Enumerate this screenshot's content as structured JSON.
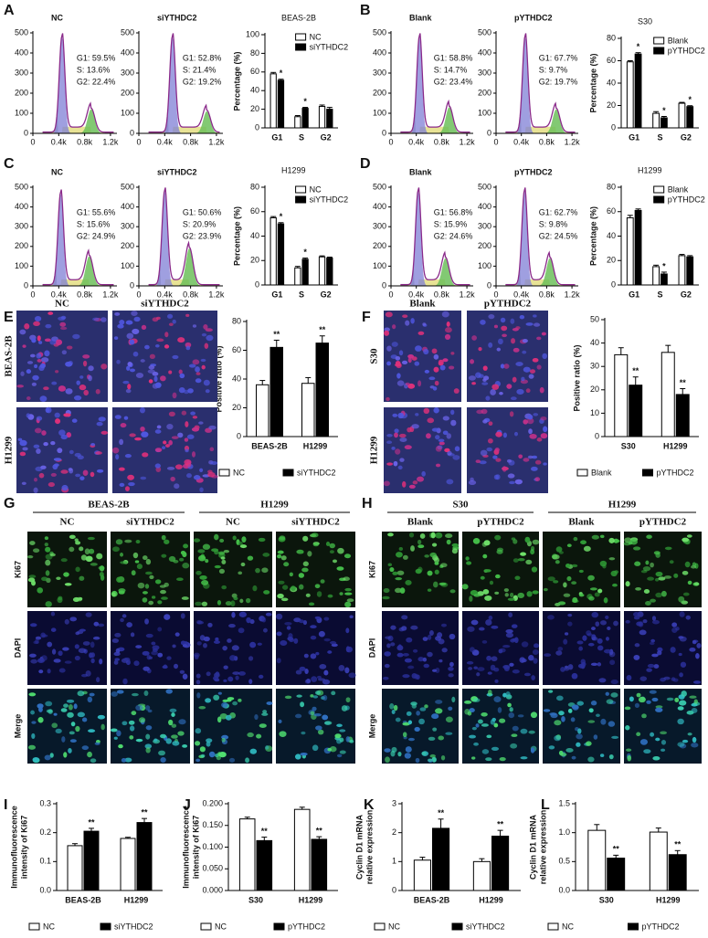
{
  "panel_letters": [
    "A",
    "B",
    "C",
    "D",
    "E",
    "F",
    "G",
    "H",
    "I",
    "J",
    "K",
    "L"
  ],
  "micrographs": {
    "E": {
      "columns": [
        "NC",
        "siYTHDC2"
      ],
      "rows": [
        "BEAS-2B",
        "H1299"
      ]
    },
    "F": {
      "columns": [
        "Blank",
        "pYTHDC2"
      ],
      "rows": [
        "S30",
        "H1299"
      ]
    },
    "G": {
      "groups": [
        "BEAS-2B",
        "H1299"
      ],
      "columns": [
        "NC",
        "siYTHDC2",
        "NC",
        "siYTHDC2"
      ],
      "rows": [
        "Ki67",
        "DAPI",
        "Merge"
      ]
    },
    "H": {
      "groups": [
        "S30",
        "H1299"
      ],
      "columns": [
        "Blank",
        "pYTHDC2",
        "Blank",
        "pYTHDC2"
      ],
      "rows": [
        "Ki67",
        "DAPI",
        "Merge"
      ]
    }
  },
  "chart_data": [
    {
      "type": "flow",
      "title": "NC",
      "stats": [
        "G1: 59.5%",
        "S:  13.6%",
        "G2: 22.4%"
      ],
      "xlim": [
        0,
        1300
      ],
      "xticks": [
        0,
        {
          "value": 400,
          "label": "0.4k"
        },
        {
          "value": 800,
          "label": "0.8k"
        },
        {
          "value": 1200,
          "label": "1.2k"
        }
      ],
      "ylim": [
        0,
        500
      ],
      "yticks": [
        0,
        100,
        200,
        300,
        400,
        500
      ]
    },
    {
      "type": "flow",
      "title": "siYTHDC2",
      "stats": [
        "G1: 52.8%",
        "S:  21.4%",
        "G2: 19.2%"
      ],
      "xlim": [
        0,
        1300
      ],
      "xticks": [
        0,
        {
          "value": 400,
          "label": "0.4k"
        },
        {
          "value": 800,
          "label": "0.8k"
        },
        {
          "value": 1200,
          "label": "1.2k"
        }
      ],
      "ylim": [
        0,
        500
      ],
      "yticks": [
        0,
        100,
        200,
        300,
        400,
        500
      ]
    },
    {
      "type": "bar",
      "title": "BEAS-2B",
      "ylabel": "Percentage (%)",
      "categories": [
        "G1",
        "S",
        "G2"
      ],
      "legend": "upper right",
      "ylim": [
        0,
        100
      ],
      "yticks": [
        0,
        20,
        40,
        60,
        80,
        100
      ],
      "series": [
        {
          "name": "NC",
          "color": "#ffffff",
          "values": [
            58,
            12,
            23
          ],
          "errors": [
            1.5,
            1.2,
            1.5
          ],
          "significance": [
            null,
            null,
            null
          ]
        },
        {
          "name": "siYTHDC2",
          "color": "#000000",
          "values": [
            51,
            21,
            20
          ],
          "errors": [
            1.2,
            1.0,
            2.0
          ],
          "significance": [
            "*",
            "*",
            null
          ]
        }
      ]
    },
    {
      "type": "flow",
      "title": "Blank",
      "stats": [
        "G1: 58.8%",
        "S:  14.7%",
        "G2: 23.4%"
      ],
      "xlim": [
        0,
        1300
      ],
      "xticks": [
        0,
        {
          "value": 400,
          "label": "0.4k"
        },
        {
          "value": 800,
          "label": "0.8k"
        },
        {
          "value": 1200,
          "label": "1.2k"
        }
      ],
      "ylim": [
        0,
        500
      ],
      "yticks": [
        0,
        100,
        200,
        300,
        400,
        500
      ]
    },
    {
      "type": "flow",
      "title": "pYTHDC2",
      "stats": [
        "G1: 67.7%",
        "S:  9.7%",
        "G2: 19.7%"
      ],
      "xlim": [
        0,
        1300
      ],
      "xticks": [
        0,
        {
          "value": 400,
          "label": "0.4k"
        },
        {
          "value": 800,
          "label": "0.8k"
        },
        {
          "value": 1200,
          "label": "1.2k"
        }
      ],
      "ylim": [
        0,
        500
      ],
      "yticks": [
        0,
        100,
        200,
        300,
        400,
        500
      ]
    },
    {
      "type": "bar",
      "title": "S30",
      "ylabel": "Percentage (%)",
      "categories": [
        "G1",
        "S",
        "G2"
      ],
      "legend": "upper right",
      "ylim": [
        0,
        80
      ],
      "yticks": [
        0,
        20,
        40,
        60,
        80
      ],
      "series": [
        {
          "name": "Blank",
          "color": "#ffffff",
          "values": [
            59,
            13,
            22
          ],
          "errors": [
            1.0,
            1.5,
            0.8
          ],
          "significance": [
            null,
            null,
            null
          ]
        },
        {
          "name": "pYTHDC2",
          "color": "#000000",
          "values": [
            66,
            9,
            19
          ],
          "errors": [
            1.2,
            1.2,
            0.8
          ],
          "significance": [
            "*",
            "*",
            "*"
          ]
        }
      ]
    },
    {
      "type": "flow",
      "title": "NC",
      "stats": [
        "G1: 55.6%",
        "S:  15.6%",
        "G2: 24.9%"
      ],
      "xlim": [
        0,
        1300
      ],
      "xticks": [
        0,
        {
          "value": 400,
          "label": "0.4k"
        },
        {
          "value": 800,
          "label": "0.8k"
        },
        {
          "value": 1200,
          "label": "1.2k"
        }
      ],
      "ylim": [
        0,
        500
      ],
      "yticks": [
        0,
        100,
        200,
        300,
        400,
        500
      ]
    },
    {
      "type": "flow",
      "title": "siYTHDC2",
      "stats": [
        "G1: 50.6%",
        "S:  20.9%",
        "G2: 23.9%"
      ],
      "xlim": [
        0,
        1300
      ],
      "xticks": [
        0,
        {
          "value": 400,
          "label": "0.4k"
        },
        {
          "value": 800,
          "label": "0.8k"
        },
        {
          "value": 1200,
          "label": "1.2k"
        }
      ],
      "ylim": [
        0,
        500
      ],
      "yticks": [
        0,
        100,
        200,
        300,
        400,
        500
      ]
    },
    {
      "type": "bar",
      "title": "H1299",
      "ylabel": "Percentage (%)",
      "categories": [
        "G1",
        "S",
        "G2"
      ],
      "legend": "upper right",
      "ylim": [
        0,
        80
      ],
      "yticks": [
        0,
        20,
        40,
        60,
        80
      ],
      "series": [
        {
          "name": "NC",
          "color": "#ffffff",
          "values": [
            55,
            14,
            23
          ],
          "errors": [
            1.0,
            1.2,
            0.8
          ],
          "significance": [
            null,
            null,
            null
          ]
        },
        {
          "name": "siYTHDC2",
          "color": "#000000",
          "values": [
            50,
            21,
            22
          ],
          "errors": [
            1.0,
            1.0,
            0.8
          ],
          "significance": [
            "*",
            "*",
            null
          ]
        }
      ]
    },
    {
      "type": "flow",
      "title": "Blank",
      "stats": [
        "G1: 56.8%",
        "S:  15.9%",
        "G2: 24.6%"
      ],
      "xlim": [
        0,
        1300
      ],
      "xticks": [
        0,
        {
          "value": 400,
          "label": "0.4k"
        },
        {
          "value": 800,
          "label": "0.8k"
        },
        {
          "value": 1200,
          "label": "1.2k"
        }
      ],
      "ylim": [
        0,
        500
      ],
      "yticks": [
        0,
        100,
        200,
        300,
        400,
        500
      ]
    },
    {
      "type": "flow",
      "title": "pYTHDC2",
      "stats": [
        "G1: 62.7%",
        "S:  9.8%",
        "G2: 24.5%"
      ],
      "xlim": [
        0,
        1300
      ],
      "xticks": [
        0,
        {
          "value": 400,
          "label": "0.4k"
        },
        {
          "value": 800,
          "label": "0.8k"
        },
        {
          "value": 1200,
          "label": "1.2k"
        }
      ],
      "ylim": [
        0,
        500
      ],
      "yticks": [
        0,
        100,
        200,
        300,
        400,
        500
      ]
    },
    {
      "type": "bar",
      "title": "H1299",
      "ylabel": "Percentage (%)",
      "categories": [
        "G1",
        "S",
        "G2"
      ],
      "legend": "upper right",
      "ylim": [
        0,
        80
      ],
      "yticks": [
        0,
        20,
        40,
        60,
        80
      ],
      "series": [
        {
          "name": "Blank",
          "color": "#ffffff",
          "values": [
            55,
            15,
            24
          ],
          "errors": [
            2.0,
            1.2,
            1.0
          ],
          "significance": [
            null,
            null,
            null
          ]
        },
        {
          "name": "pYTHDC2",
          "color": "#000000",
          "values": [
            61,
            9,
            23
          ],
          "errors": [
            1.2,
            1.5,
            1.0
          ],
          "significance": [
            null,
            "*",
            null
          ]
        }
      ]
    },
    {
      "type": "bar",
      "ylabel": "Positive ratio (%)",
      "categories": [
        "BEAS-2B",
        "H1299"
      ],
      "legend": "bottom",
      "ylim": [
        0,
        80
      ],
      "yticks": [
        0,
        20,
        40,
        60,
        80
      ],
      "series": [
        {
          "name": "NC",
          "color": "#ffffff",
          "values": [
            36,
            37
          ],
          "errors": [
            3,
            4
          ],
          "significance": [
            null,
            null
          ]
        },
        {
          "name": "siYTHDC2",
          "color": "#000000",
          "values": [
            62,
            65
          ],
          "errors": [
            5,
            5
          ],
          "significance": [
            "**",
            "**"
          ]
        }
      ]
    },
    {
      "type": "bar",
      "ylabel": "Positive ratio (%)",
      "categories": [
        "S30",
        "H1299"
      ],
      "legend": "bottom",
      "ylim": [
        0,
        50
      ],
      "yticks": [
        0,
        10,
        20,
        30,
        40,
        50
      ],
      "series": [
        {
          "name": "Blank",
          "color": "#ffffff",
          "values": [
            35,
            36
          ],
          "errors": [
            3,
            3
          ],
          "significance": [
            null,
            null
          ]
        },
        {
          "name": "pYTHDC2",
          "color": "#000000",
          "values": [
            22,
            18
          ],
          "errors": [
            3.5,
            2.5
          ],
          "significance": [
            "**",
            "**"
          ]
        }
      ]
    },
    {
      "type": "bar",
      "ylabel": [
        "Immunofluorescence",
        "intensity of Ki67"
      ],
      "categories": [
        "BEAS-2B",
        "H1299"
      ],
      "legend": "bottom",
      "ylim": [
        0,
        0.3
      ],
      "yticks": [
        {
          "value": 0,
          "label": "0.0"
        },
        0.1,
        0.2,
        0.3
      ],
      "series": [
        {
          "name": "NC",
          "color": "#ffffff",
          "values": [
            0.155,
            0.18
          ],
          "errors": [
            0.007,
            0.004
          ],
          "significance": [
            null,
            null
          ]
        },
        {
          "name": "siYTHDC2",
          "color": "#000000",
          "values": [
            0.205,
            0.235
          ],
          "errors": [
            0.01,
            0.014
          ],
          "significance": [
            "**",
            "**"
          ]
        }
      ]
    },
    {
      "type": "bar",
      "ylabel": [
        "Immunofluorescence",
        "intensity of Ki67"
      ],
      "categories": [
        "S30",
        "H1299"
      ],
      "legend": "bottom",
      "ylim": [
        0,
        0.2
      ],
      "yticks": [
        {
          "value": 0,
          "label": "0.000"
        },
        {
          "value": 0.05,
          "label": "0.050"
        },
        {
          "value": 0.1,
          "label": "0.100"
        },
        {
          "value": 0.15,
          "label": "0.150"
        },
        {
          "value": 0.2,
          "label": "0.200"
        }
      ],
      "series": [
        {
          "name": "NC",
          "color": "#ffffff",
          "values": [
            0.165,
            0.187
          ],
          "errors": [
            0.004,
            0.005
          ],
          "significance": [
            null,
            null
          ]
        },
        {
          "name": "pYTHDC2",
          "color": "#000000",
          "values": [
            0.115,
            0.118
          ],
          "errors": [
            0.008,
            0.006
          ],
          "significance": [
            "**",
            "**"
          ]
        }
      ]
    },
    {
      "type": "bar",
      "ylabel": [
        "Cyclin D1 mRNA",
        "relative expression"
      ],
      "categories": [
        "BEAS-2B",
        "H1299"
      ],
      "legend": "bottom",
      "ylim": [
        0,
        3
      ],
      "yticks": [
        0,
        1,
        2,
        3
      ],
      "series": [
        {
          "name": "NC",
          "color": "#ffffff",
          "values": [
            1.05,
            1.0
          ],
          "errors": [
            0.1,
            0.1
          ],
          "significance": [
            null,
            null
          ]
        },
        {
          "name": "siYTHDC2",
          "color": "#000000",
          "values": [
            2.15,
            1.88
          ],
          "errors": [
            0.32,
            0.2
          ],
          "significance": [
            "**",
            "**"
          ]
        }
      ]
    },
    {
      "type": "bar",
      "ylabel": [
        "Cyclin D1 mRNA",
        "relative expression"
      ],
      "categories": [
        "S30",
        "H1299"
      ],
      "legend": "bottom",
      "ylim": [
        0,
        1.5
      ],
      "yticks": [
        {
          "value": 0,
          "label": "0.0"
        },
        0.5,
        {
          "value": 1,
          "label": "1.0"
        },
        1.5
      ],
      "series": [
        {
          "name": "NC",
          "color": "#ffffff",
          "values": [
            1.04,
            1.01
          ],
          "errors": [
            0.1,
            0.07
          ],
          "significance": [
            null,
            null
          ]
        },
        {
          "name": "pYTHDC2",
          "color": "#000000",
          "values": [
            0.56,
            0.62
          ],
          "errors": [
            0.05,
            0.07
          ],
          "significance": [
            "**",
            "**"
          ]
        }
      ]
    }
  ]
}
